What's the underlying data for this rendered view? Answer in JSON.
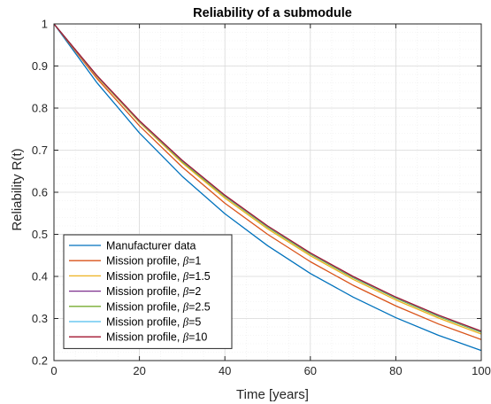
{
  "chart_data": {
    "type": "line",
    "title": "Reliability of a submodule",
    "xlabel": "Time [years]",
    "ylabel": "Reliability R(t)",
    "xlim": [
      0,
      100
    ],
    "ylim": [
      0.2,
      1
    ],
    "xticks": [
      0,
      20,
      40,
      60,
      80,
      100
    ],
    "yticks": [
      0.2,
      0.3,
      0.4,
      0.5,
      0.6,
      0.7,
      0.8,
      0.9,
      1
    ],
    "grid": true,
    "minor_grid": true,
    "legend_position": "bottom-left",
    "x": [
      0,
      10,
      20,
      30,
      40,
      50,
      60,
      70,
      80,
      90,
      100
    ],
    "series": [
      {
        "name_prefix": "Manufacturer data",
        "beta": "",
        "color": "#0072BD",
        "values": [
          1.0,
          0.861,
          0.741,
          0.638,
          0.549,
          0.473,
          0.407,
          0.351,
          0.302,
          0.26,
          0.224
        ]
      },
      {
        "name_prefix": "Mission profile, ",
        "beta": "=1",
        "color": "#D95319",
        "values": [
          1.0,
          0.871,
          0.758,
          0.66,
          0.574,
          0.5,
          0.435,
          0.379,
          0.33,
          0.287,
          0.25
        ]
      },
      {
        "name_prefix": "Mission profile, ",
        "beta": "=1.5",
        "color": "#EDB120",
        "values": [
          1.0,
          0.875,
          0.766,
          0.67,
          0.586,
          0.513,
          0.449,
          0.393,
          0.344,
          0.301,
          0.263
        ]
      },
      {
        "name_prefix": "Mission profile, ",
        "beta": "=2",
        "color": "#7E2F8E",
        "values": [
          1.0,
          0.877,
          0.769,
          0.674,
          0.591,
          0.518,
          0.454,
          0.398,
          0.349,
          0.306,
          0.268
        ]
      },
      {
        "name_prefix": "Mission profile, ",
        "beta": "=2.5",
        "color": "#77AC30",
        "values": [
          1.0,
          0.877,
          0.768,
          0.673,
          0.59,
          0.517,
          0.453,
          0.397,
          0.348,
          0.305,
          0.267
        ]
      },
      {
        "name_prefix": "Mission profile, ",
        "beta": "=5",
        "color": "#4DBEEE",
        "values": [
          1.0,
          0.877,
          0.769,
          0.675,
          0.592,
          0.519,
          0.455,
          0.399,
          0.35,
          0.307,
          0.269
        ]
      },
      {
        "name_prefix": "Mission profile, ",
        "beta": "=10",
        "color": "#A2142F",
        "values": [
          1.0,
          0.878,
          0.77,
          0.676,
          0.593,
          0.52,
          0.456,
          0.4,
          0.351,
          0.308,
          0.27
        ]
      }
    ]
  }
}
